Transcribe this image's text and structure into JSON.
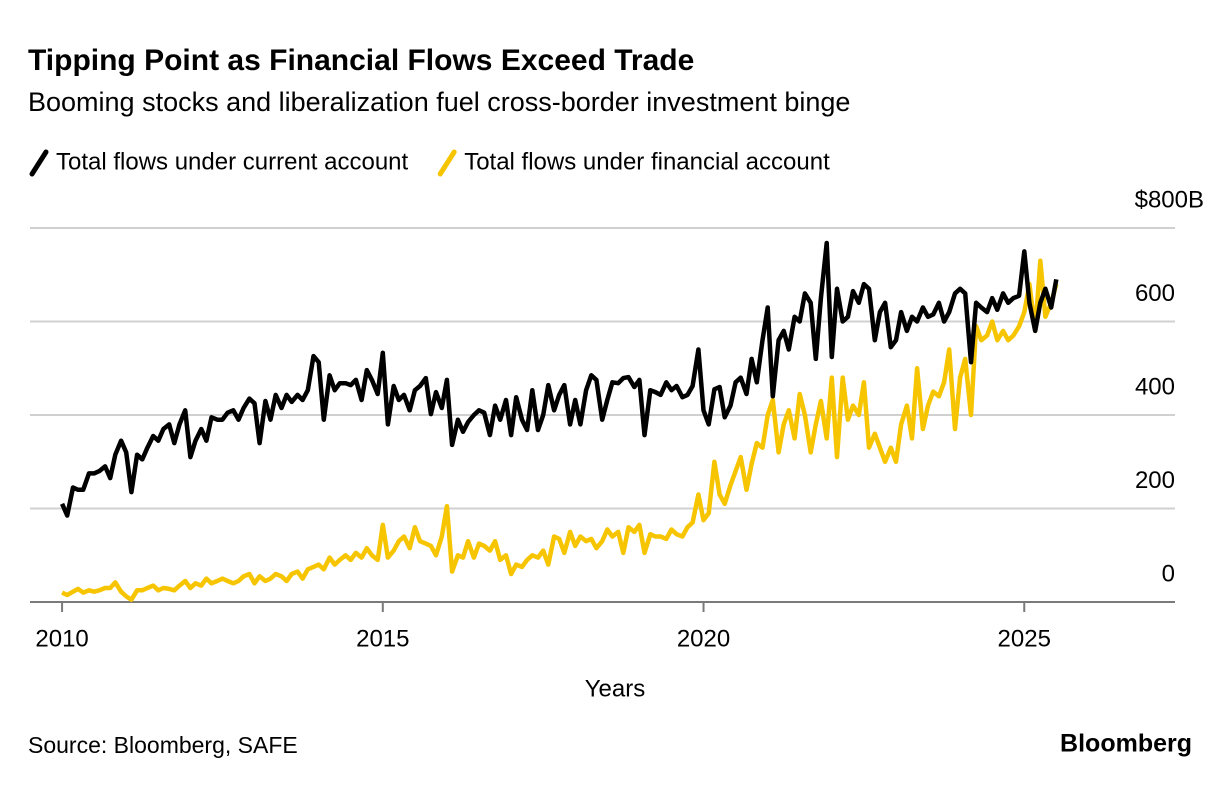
{
  "chart_data": {
    "type": "line",
    "title": "Tipping Point as Financial Flows Exceed Trade",
    "subtitle": "Booming stocks and liberalization fuel cross-border investment binge",
    "x_label": "Years",
    "source": "Source: Bloomberg, SAFE",
    "brand": "Bloomberg",
    "xlim": [
      2009.5,
      2027.35
    ],
    "xticks": [
      2010,
      2015,
      2020,
      2025
    ],
    "ylim": [
      0,
      800
    ],
    "yticks": [
      0,
      200,
      400,
      600,
      {
        "value": 800,
        "label": "$800B"
      }
    ],
    "grid": true,
    "legend": "top-left",
    "x": [
      2010,
      2010.08,
      2010.17,
      2010.25,
      2010.33,
      2010.42,
      2010.5,
      2010.58,
      2010.67,
      2010.75,
      2010.83,
      2010.92,
      2011,
      2011.08,
      2011.17,
      2011.25,
      2011.33,
      2011.42,
      2011.5,
      2011.58,
      2011.67,
      2011.75,
      2011.83,
      2011.92,
      2012,
      2012.08,
      2012.17,
      2012.25,
      2012.33,
      2012.42,
      2012.5,
      2012.58,
      2012.67,
      2012.75,
      2012.83,
      2012.92,
      2013,
      2013.08,
      2013.17,
      2013.25,
      2013.33,
      2013.42,
      2013.5,
      2013.58,
      2013.67,
      2013.75,
      2013.83,
      2013.92,
      2014,
      2014.08,
      2014.17,
      2014.25,
      2014.33,
      2014.42,
      2014.5,
      2014.58,
      2014.67,
      2014.75,
      2014.83,
      2014.92,
      2015,
      2015.08,
      2015.17,
      2015.25,
      2015.33,
      2015.42,
      2015.5,
      2015.58,
      2015.67,
      2015.75,
      2015.83,
      2015.92,
      2016,
      2016.08,
      2016.17,
      2016.25,
      2016.33,
      2016.42,
      2016.5,
      2016.58,
      2016.67,
      2016.75,
      2016.83,
      2016.92,
      2017,
      2017.08,
      2017.17,
      2017.25,
      2017.33,
      2017.42,
      2017.5,
      2017.58,
      2017.67,
      2017.75,
      2017.83,
      2017.92,
      2018,
      2018.08,
      2018.17,
      2018.25,
      2018.33,
      2018.42,
      2018.5,
      2018.58,
      2018.67,
      2018.75,
      2018.83,
      2018.92,
      2019,
      2019.08,
      2019.17,
      2019.25,
      2019.33,
      2019.42,
      2019.5,
      2019.58,
      2019.67,
      2019.75,
      2019.83,
      2019.92,
      2020,
      2020.08,
      2020.17,
      2020.25,
      2020.33,
      2020.42,
      2020.5,
      2020.58,
      2020.67,
      2020.75,
      2020.83,
      2020.92,
      2021,
      2021.08,
      2021.17,
      2021.25,
      2021.33,
      2021.42,
      2021.5,
      2021.58,
      2021.67,
      2021.75,
      2021.83,
      2021.92,
      2022,
      2022.08,
      2022.17,
      2022.25,
      2022.33,
      2022.42,
      2022.5,
      2022.58,
      2022.67,
      2022.75,
      2022.83,
      2022.92,
      2023,
      2023.08,
      2023.17,
      2023.25,
      2023.33,
      2023.42,
      2023.5,
      2023.58,
      2023.67,
      2023.75,
      2023.83,
      2023.92,
      2024,
      2024.08,
      2024.17,
      2024.25,
      2024.33,
      2024.42,
      2024.5,
      2024.58,
      2024.67,
      2024.75,
      2024.83,
      2024.92,
      2025,
      2025.08,
      2025.17,
      2025.25,
      2025.33,
      2025.42,
      2025.5
    ],
    "series": [
      {
        "name": "Total flows under current account",
        "color": "#000000",
        "values": [
          210,
          185,
          245,
          240,
          240,
          275,
          275,
          280,
          290,
          265,
          315,
          345,
          320,
          235,
          315,
          305,
          330,
          355,
          345,
          370,
          380,
          340,
          380,
          410,
          310,
          345,
          370,
          345,
          395,
          390,
          390,
          405,
          410,
          390,
          415,
          435,
          425,
          340,
          430,
          390,
          443,
          415,
          443,
          428,
          443,
          432,
          453,
          526,
          513,
          390,
          485,
          453,
          468,
          468,
          464,
          475,
          432,
          496,
          475,
          445,
          533,
          380,
          462,
          432,
          443,
          410,
          453,
          462,
          479,
          402,
          449,
          415,
          475,
          336,
          390,
          364,
          385,
          400,
          410,
          405,
          357,
          420,
          390,
          432,
          357,
          438,
          390,
          368,
          453,
          368,
          400,
          464,
          410,
          443,
          464,
          380,
          432,
          380,
          453,
          485,
          475,
          390,
          432,
          470,
          468,
          479,
          481,
          460,
          475,
          357,
          453,
          449,
          443,
          470,
          453,
          462,
          438,
          443,
          462,
          540,
          410,
          380,
          455,
          460,
          395,
          420,
          470,
          480,
          445,
          520,
          470,
          560,
          630,
          440,
          560,
          580,
          540,
          610,
          600,
          660,
          640,
          520,
          650,
          768,
          524,
          670,
          600,
          610,
          665,
          640,
          680,
          670,
          560,
          620,
          640,
          545,
          560,
          620,
          580,
          610,
          600,
          630,
          610,
          615,
          640,
          600,
          620,
          660,
          670,
          660,
          513,
          640,
          630,
          620,
          650,
          625,
          660,
          640,
          650,
          655,
          750,
          640,
          580,
          640,
          670,
          630,
          690
        ]
      },
      {
        "name": "Total flows under financial account",
        "color": "#f6c500",
        "values": [
          20,
          15,
          22,
          28,
          20,
          25,
          22,
          25,
          30,
          30,
          42,
          22,
          12,
          5,
          25,
          25,
          30,
          35,
          25,
          30,
          28,
          25,
          35,
          45,
          30,
          40,
          35,
          50,
          40,
          45,
          50,
          45,
          40,
          45,
          55,
          60,
          40,
          55,
          45,
          50,
          60,
          55,
          45,
          60,
          65,
          50,
          70,
          75,
          80,
          70,
          95,
          80,
          90,
          100,
          90,
          105,
          95,
          115,
          100,
          90,
          165,
          95,
          110,
          130,
          140,
          115,
          160,
          130,
          125,
          120,
          100,
          140,
          205,
          65,
          100,
          95,
          130,
          95,
          125,
          120,
          110,
          130,
          90,
          100,
          60,
          80,
          75,
          90,
          100,
          95,
          110,
          80,
          140,
          135,
          105,
          150,
          120,
          140,
          130,
          135,
          115,
          130,
          155,
          140,
          150,
          105,
          160,
          150,
          165,
          105,
          145,
          140,
          140,
          135,
          155,
          145,
          140,
          160,
          170,
          230,
          175,
          190,
          300,
          230,
          210,
          250,
          280,
          310,
          240,
          295,
          340,
          330,
          400,
          432,
          320,
          380,
          410,
          350,
          445,
          400,
          320,
          380,
          430,
          350,
          480,
          310,
          480,
          390,
          420,
          400,
          470,
          330,
          360,
          330,
          300,
          330,
          300,
          380,
          420,
          350,
          500,
          370,
          420,
          450,
          440,
          470,
          540,
          370,
          480,
          520,
          400,
          590,
          560,
          570,
          600,
          560,
          580,
          560,
          570,
          590,
          620,
          680,
          580,
          730,
          610,
          640,
          680
        ]
      }
    ]
  }
}
